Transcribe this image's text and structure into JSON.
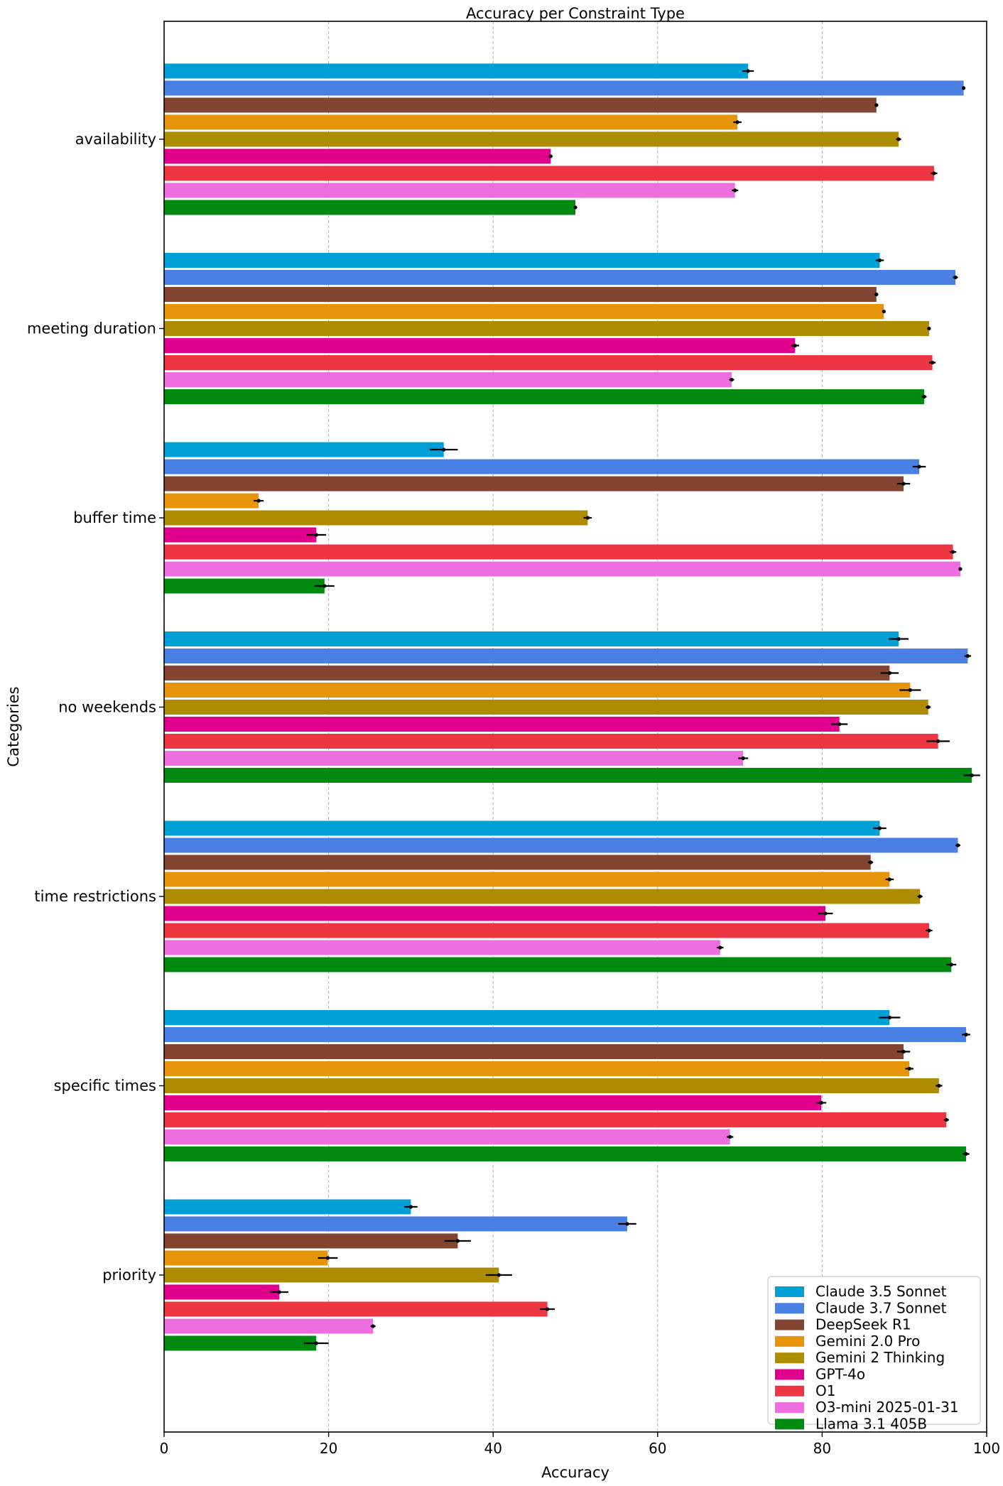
{
  "chart_data": {
    "type": "bar",
    "orientation": "horizontal",
    "title": "Accuracy per Constraint Type",
    "xlabel": "Accuracy",
    "ylabel": "Categories",
    "xlim": [
      0,
      100
    ],
    "xticks": [
      0,
      20,
      40,
      60,
      80,
      100
    ],
    "grid": "vertical dashed",
    "legend_position": "lower-right",
    "categories": [
      "availability",
      "meeting duration",
      "buffer time",
      "no weekends",
      "time restrictions",
      "specific times",
      "priority"
    ],
    "series": [
      {
        "name": "Claude 3.5 Sonnet",
        "color": "#00a0d6",
        "values": [
          71,
          87,
          34,
          89.3,
          87,
          88.2,
          30
        ],
        "errors": [
          0.7,
          0.5,
          1.7,
          1.2,
          0.8,
          1.3,
          0.8
        ]
      },
      {
        "name": "Claude 3.7 Sonnet",
        "color": "#4a80e4",
        "values": [
          97.2,
          96.2,
          91.8,
          97.7,
          96.5,
          97.5,
          56.3
        ],
        "errors": [
          0.2,
          0.3,
          0.8,
          0.4,
          0.3,
          0.5,
          1.1
        ]
      },
      {
        "name": "DeepSeek R1",
        "color": "#834431",
        "values": [
          86.6,
          86.6,
          89.9,
          88.2,
          85.9,
          89.9,
          35.7
        ],
        "errors": [
          0.2,
          0.2,
          0.8,
          1.1,
          0.3,
          0.8,
          1.6
        ]
      },
      {
        "name": "Gemini 2.0 Pro",
        "color": "#e6940a",
        "values": [
          69.7,
          87.5,
          11.5,
          90.7,
          88.2,
          90.6,
          19.9
        ],
        "errors": [
          0.5,
          0.2,
          0.6,
          1.3,
          0.5,
          0.5,
          1.2
        ]
      },
      {
        "name": "Gemini 2 Thinking",
        "color": "#ae8c00",
        "values": [
          89.3,
          93,
          51.5,
          92.9,
          91.9,
          94.2,
          40.7
        ],
        "errors": [
          0.3,
          0.1,
          0.5,
          0.3,
          0.3,
          0.4,
          1.6
        ]
      },
      {
        "name": "GPT-4o",
        "color": "#e0008c",
        "values": [
          47,
          76.7,
          18.5,
          82.1,
          80.4,
          79.9,
          14
        ],
        "errors": [
          0.2,
          0.5,
          1.2,
          1,
          0.9,
          0.6,
          1.1
        ]
      },
      {
        "name": "O1",
        "color": "#ee3542",
        "values": [
          93.6,
          93.4,
          95.9,
          94.1,
          93,
          95.1,
          46.6
        ],
        "errors": [
          0.4,
          0.4,
          0.4,
          1.4,
          0.4,
          0.3,
          0.9
        ]
      },
      {
        "name": "O3-mini 2025-01-31",
        "color": "#ee6ee0",
        "values": [
          69.4,
          69,
          96.8,
          70.4,
          67.6,
          68.8,
          25.4
        ],
        "errors": [
          0.4,
          0.3,
          0.2,
          0.6,
          0.4,
          0.4,
          0.3
        ]
      },
      {
        "name": "Llama 3.1 405B",
        "color": "#008a0f",
        "values": [
          50,
          92.4,
          19.5,
          98.2,
          95.7,
          97.5,
          18.5
        ],
        "errors": [
          0.1,
          0.3,
          1.2,
          1,
          0.6,
          0.4,
          1.5
        ]
      }
    ]
  }
}
